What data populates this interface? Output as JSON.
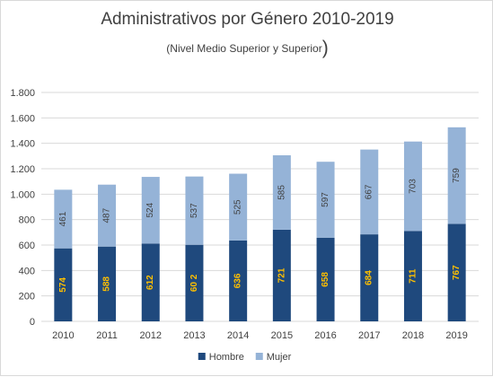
{
  "chart_data": {
    "type": "bar",
    "stacked": true,
    "title": "Administrativos por Género 2010-2019",
    "subtitle": "(Nivel Medio Superior y Superior",
    "subtitle_close": ")",
    "categories": [
      "2010",
      "2011",
      "2012",
      "2013",
      "2014",
      "2015",
      "2016",
      "2017",
      "2018",
      "2019"
    ],
    "series": [
      {
        "name": "Hombre",
        "color": "#1f497d",
        "label_color": "#ffc000",
        "values": [
          574,
          588,
          612,
          602,
          636,
          721,
          658,
          684,
          711,
          767
        ]
      },
      {
        "name": "Mujer",
        "color": "#95b3d7",
        "label_color": "#404040",
        "values": [
          461,
          487,
          524,
          537,
          525,
          585,
          597,
          667,
          703,
          759
        ]
      }
    ],
    "data_labels": {
      "Hombre": [
        "574",
        "588",
        "612",
        "60 2",
        "636",
        "721",
        "658",
        "684",
        "711",
        "767"
      ],
      "Mujer": [
        "461",
        "487",
        "524",
        "537",
        "525",
        "585",
        "597",
        "667",
        "703",
        "759"
      ]
    },
    "ylim": [
      0,
      1800
    ],
    "yticks": [
      0,
      200,
      400,
      600,
      800,
      1000,
      1200,
      1400,
      1600,
      1800
    ],
    "ytick_labels": [
      "0",
      "200",
      "400",
      "600",
      "800",
      "1.000",
      "1.200",
      "1.400",
      "1.600",
      "1.800"
    ],
    "grid": true,
    "legend": "bottom"
  }
}
